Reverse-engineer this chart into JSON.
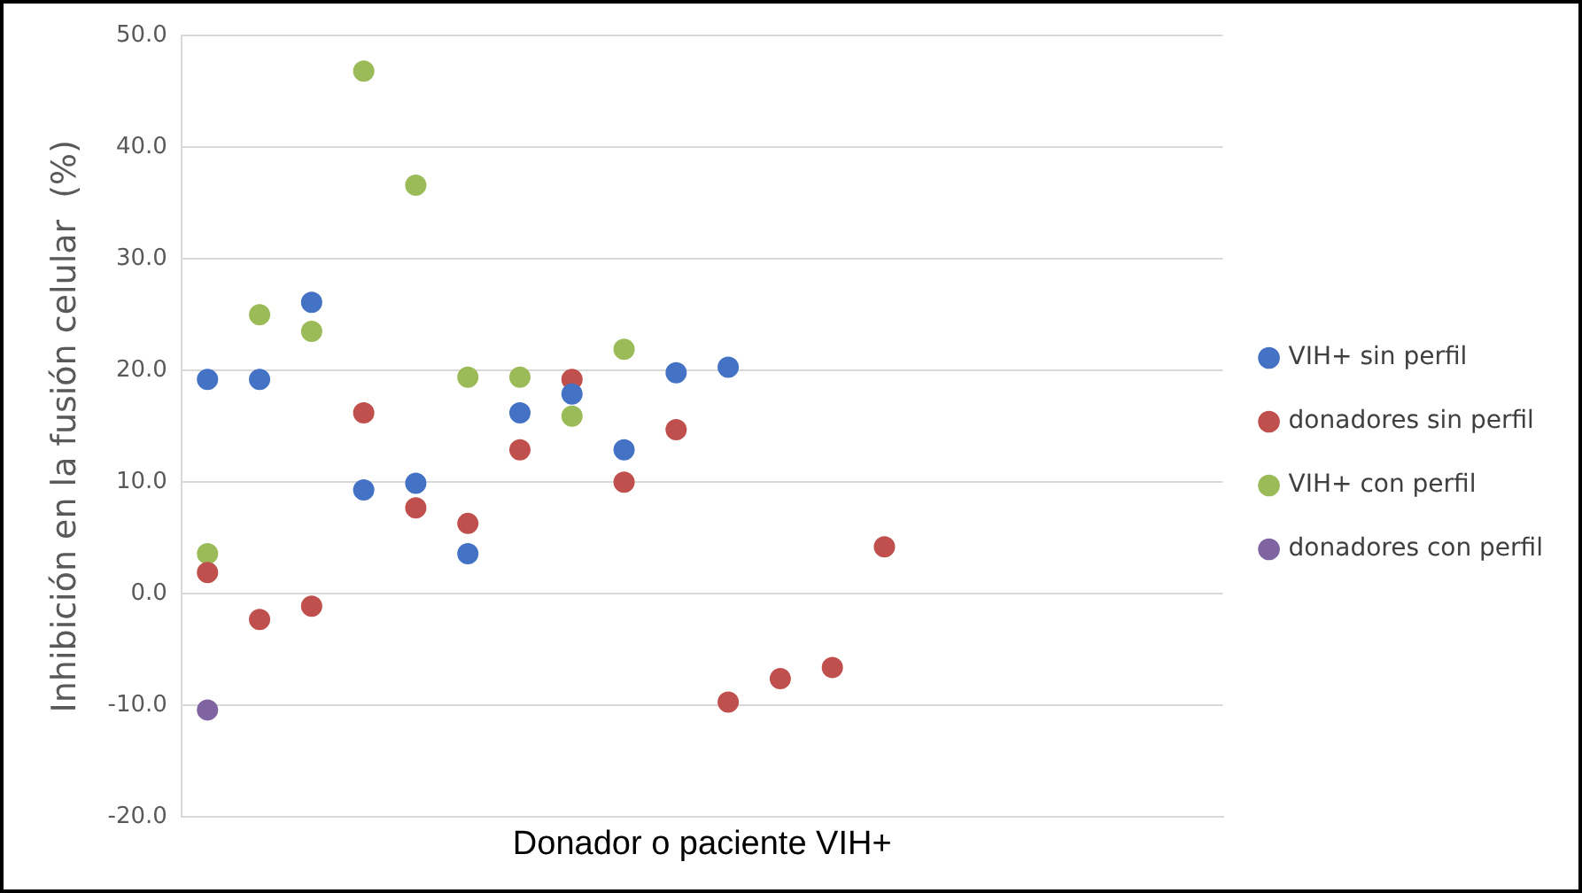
{
  "chart_data": {
    "type": "scatter",
    "xlabel": "Donador o paciente VIH+",
    "ylabel": "Inhibición en la fusión celular  (%)",
    "categories": [
      null,
      null,
      null,
      null,
      null,
      null,
      null,
      null,
      null,
      null,
      null,
      null,
      null,
      null,
      null,
      null,
      null,
      null,
      null,
      null
    ],
    "ylim": [
      -20,
      50
    ],
    "yticks": [
      {
        "value": -20,
        "label": "-20.0"
      },
      {
        "value": -10,
        "label": "-10.0"
      },
      {
        "value": 0,
        "label": "0.0"
      },
      {
        "value": 10,
        "label": "10.0"
      },
      {
        "value": 20,
        "label": "20.0"
      },
      {
        "value": 30,
        "label": "30.0"
      },
      {
        "value": 40,
        "label": "40.0"
      },
      {
        "value": 50,
        "label": "50.0"
      }
    ],
    "tick_labels": "y",
    "grid": "y",
    "legend": "right",
    "marker": "circle",
    "series": [
      {
        "name": "VIH+ sin perfil",
        "color": "#4472c4",
        "values": [
          19.2,
          19.2,
          26.1,
          9.3,
          9.9,
          3.6,
          16.2,
          17.9,
          12.9,
          19.8,
          20.3,
          null,
          null,
          null,
          null,
          null,
          null,
          null,
          null,
          null
        ]
      },
      {
        "name": "donadores sin perfil",
        "color": "#c0504d",
        "values": [
          1.9,
          -2.3,
          -1.1,
          16.2,
          7.7,
          6.3,
          12.9,
          19.2,
          10.0,
          14.7,
          -9.7,
          -7.6,
          -6.6,
          4.2,
          null,
          null,
          null,
          null,
          null,
          null
        ]
      },
      {
        "name": "VIH+ con perfil",
        "color": "#9bbb59",
        "values": [
          3.6,
          25.0,
          23.5,
          46.8,
          36.6,
          19.4,
          19.4,
          15.9,
          21.9,
          null,
          null,
          null,
          null,
          null,
          null,
          null,
          null,
          null,
          null,
          null
        ]
      },
      {
        "name": "donadores con perfil",
        "color": "#8064a2",
        "values": [
          -10.4,
          null,
          null,
          null,
          null,
          null,
          null,
          null,
          null,
          null,
          null,
          null,
          null,
          null,
          null,
          null,
          null,
          null,
          null,
          null
        ]
      }
    ]
  }
}
